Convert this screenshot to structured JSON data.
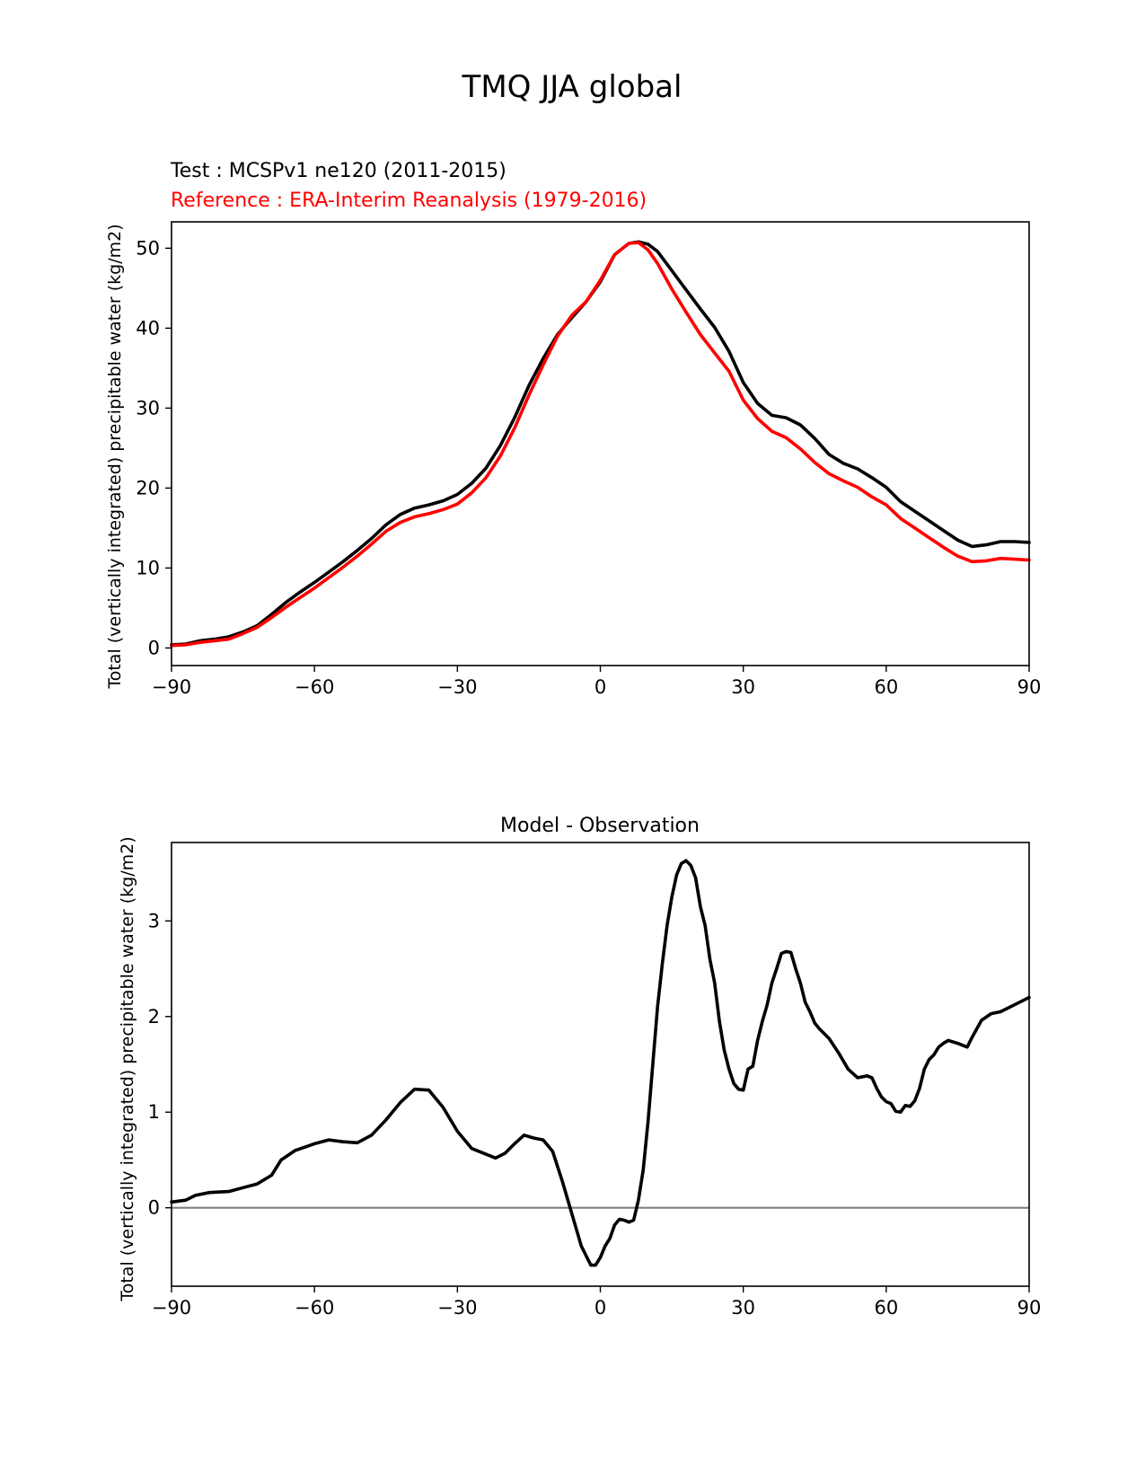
{
  "figure_title": "TMQ JJA global",
  "colors": {
    "test": "#000000",
    "reference": "#ff0000",
    "zero_line": "#808080"
  },
  "chart_data": [
    {
      "type": "line",
      "id": "top",
      "title": "",
      "test_label": "Test : MCSPv1 ne120 (2011-2015)",
      "reference_label": "Reference : ERA-Interim Reanalysis (1979-2016)",
      "xlabel": "",
      "ylabel": "Total (vertically integrated) precipitable water (kg/m2)",
      "xlim": [
        -90,
        90
      ],
      "ylim": [
        -2.2,
        53.3
      ],
      "xticks": [
        -90,
        -60,
        -30,
        0,
        30,
        60,
        90
      ],
      "xtick_labels": [
        "−90",
        "−60",
        "−30",
        "0",
        "30",
        "60",
        "90"
      ],
      "yticks": [
        0,
        10,
        20,
        30,
        40,
        50
      ],
      "ytick_labels": [
        "0",
        "10",
        "20",
        "30",
        "40",
        "50"
      ],
      "series": [
        {
          "name": "test",
          "color": "#000000",
          "x": [
            -90,
            -87,
            -84,
            -81,
            -78,
            -75,
            -72,
            -69,
            -66,
            -63,
            -60,
            -57,
            -54,
            -51,
            -48,
            -45,
            -42,
            -39,
            -36,
            -33,
            -30,
            -27,
            -24,
            -21,
            -18,
            -15,
            -12,
            -9,
            -6,
            -3,
            0,
            3,
            6,
            8,
            10,
            12,
            15,
            18,
            21,
            24,
            27,
            30,
            33,
            36,
            39,
            42,
            45,
            48,
            51,
            54,
            57,
            60,
            63,
            66,
            69,
            72,
            75,
            78,
            81,
            84,
            87,
            90
          ],
          "y": [
            0.4,
            0.5,
            0.9,
            1.1,
            1.4,
            2.0,
            2.8,
            4.2,
            5.7,
            7.0,
            8.2,
            9.5,
            10.8,
            12.2,
            13.7,
            15.4,
            16.7,
            17.5,
            17.9,
            18.4,
            19.2,
            20.6,
            22.5,
            25.3,
            28.8,
            32.8,
            36.2,
            39.2,
            41.3,
            43.3,
            45.8,
            49.2,
            50.6,
            50.8,
            50.5,
            49.6,
            47.2,
            44.8,
            42.4,
            40.1,
            37.1,
            33.2,
            30.6,
            29.1,
            28.8,
            27.9,
            26.2,
            24.2,
            23.1,
            22.4,
            21.3,
            20.1,
            18.3,
            17.1,
            15.9,
            14.7,
            13.5,
            12.7,
            12.9,
            13.3,
            13.3,
            13.2
          ]
        },
        {
          "name": "reference",
          "color": "#ff0000",
          "x": [
            -90,
            -87,
            -84,
            -81,
            -78,
            -75,
            -72,
            -69,
            -66,
            -63,
            -60,
            -57,
            -54,
            -51,
            -48,
            -45,
            -42,
            -39,
            -36,
            -33,
            -30,
            -27,
            -24,
            -21,
            -18,
            -15,
            -12,
            -9,
            -6,
            -3,
            0,
            3,
            6,
            8,
            10,
            12,
            15,
            18,
            21,
            24,
            27,
            30,
            33,
            36,
            39,
            42,
            45,
            48,
            51,
            54,
            57,
            60,
            63,
            66,
            69,
            72,
            75,
            78,
            81,
            84,
            87,
            90
          ],
          "y": [
            0.3,
            0.4,
            0.7,
            0.9,
            1.1,
            1.8,
            2.6,
            3.8,
            5.1,
            6.3,
            7.5,
            8.8,
            10.1,
            11.5,
            13.0,
            14.6,
            15.7,
            16.4,
            16.8,
            17.3,
            18.0,
            19.4,
            21.3,
            24.0,
            27.5,
            31.6,
            35.4,
            39.0,
            41.6,
            43.3,
            46.0,
            49.2,
            50.6,
            50.7,
            49.8,
            48.1,
            44.9,
            42.0,
            39.2,
            36.9,
            34.6,
            31.0,
            28.7,
            27.1,
            26.3,
            24.9,
            23.2,
            21.8,
            20.9,
            20.1,
            18.9,
            17.9,
            16.2,
            15.0,
            13.8,
            12.6,
            11.5,
            10.8,
            10.9,
            11.2,
            11.1,
            11.0
          ]
        }
      ]
    },
    {
      "type": "line",
      "id": "bottom",
      "title": "Model - Observation",
      "xlabel": "",
      "ylabel": "Total (vertically integrated) precipitable water (kg/m2)",
      "xlim": [
        -90,
        90
      ],
      "ylim": [
        -0.82,
        3.82
      ],
      "xticks": [
        -90,
        -60,
        -30,
        0,
        30,
        60,
        90
      ],
      "xtick_labels": [
        "−90",
        "−60",
        "−30",
        "0",
        "30",
        "60",
        "90"
      ],
      "yticks": [
        0,
        1,
        2,
        3
      ],
      "ytick_labels": [
        "0",
        "1",
        "2",
        "3"
      ],
      "zero_line": 0,
      "series": [
        {
          "name": "difference",
          "color": "#000000",
          "x": [
            -90,
            -87,
            -85,
            -82,
            -78,
            -75,
            -72,
            -69,
            -67,
            -64,
            -60,
            -57,
            -54,
            -51,
            -48,
            -45,
            -42,
            -39,
            -36,
            -33,
            -30,
            -27,
            -24,
            -22,
            -20,
            -18,
            -16,
            -14,
            -12,
            -10,
            -8,
            -6,
            -4,
            -2,
            -1,
            0,
            1,
            2,
            3,
            4,
            5,
            6,
            7,
            8,
            9,
            10,
            11,
            12,
            13,
            14,
            15,
            16,
            17,
            18,
            19,
            20,
            21,
            22,
            23,
            24,
            25,
            26,
            27,
            28,
            29,
            30,
            31,
            32,
            33,
            34,
            35,
            36,
            37,
            38,
            39,
            40,
            41,
            42,
            43,
            44,
            45,
            46,
            47,
            48,
            50,
            52,
            54,
            56,
            57,
            58,
            59,
            60,
            61,
            62,
            63,
            64,
            65,
            66,
            67,
            68,
            69,
            70,
            71,
            72,
            73,
            75,
            77,
            78,
            80,
            82,
            84,
            86,
            88,
            90
          ],
          "y": [
            0.06,
            0.08,
            0.13,
            0.16,
            0.17,
            0.21,
            0.25,
            0.34,
            0.5,
            0.6,
            0.67,
            0.71,
            0.69,
            0.68,
            0.76,
            0.92,
            1.1,
            1.24,
            1.23,
            1.05,
            0.8,
            0.62,
            0.56,
            0.52,
            0.57,
            0.67,
            0.76,
            0.73,
            0.71,
            0.59,
            0.28,
            -0.06,
            -0.4,
            -0.6,
            -0.6,
            -0.52,
            -0.4,
            -0.32,
            -0.18,
            -0.12,
            -0.13,
            -0.15,
            -0.13,
            0.08,
            0.4,
            0.9,
            1.5,
            2.1,
            2.55,
            2.95,
            3.25,
            3.48,
            3.6,
            3.63,
            3.58,
            3.45,
            3.15,
            2.95,
            2.6,
            2.35,
            1.95,
            1.65,
            1.45,
            1.3,
            1.24,
            1.23,
            1.45,
            1.48,
            1.75,
            1.95,
            2.12,
            2.35,
            2.5,
            2.66,
            2.68,
            2.67,
            2.5,
            2.35,
            2.15,
            2.05,
            1.93,
            1.87,
            1.82,
            1.77,
            1.62,
            1.45,
            1.36,
            1.38,
            1.36,
            1.25,
            1.16,
            1.11,
            1.09,
            1.01,
            1.0,
            1.07,
            1.06,
            1.12,
            1.25,
            1.45,
            1.55,
            1.6,
            1.68,
            1.72,
            1.75,
            1.72,
            1.68,
            1.78,
            1.96,
            2.03,
            2.05,
            2.1,
            2.15,
            2.2
          ]
        }
      ]
    }
  ]
}
